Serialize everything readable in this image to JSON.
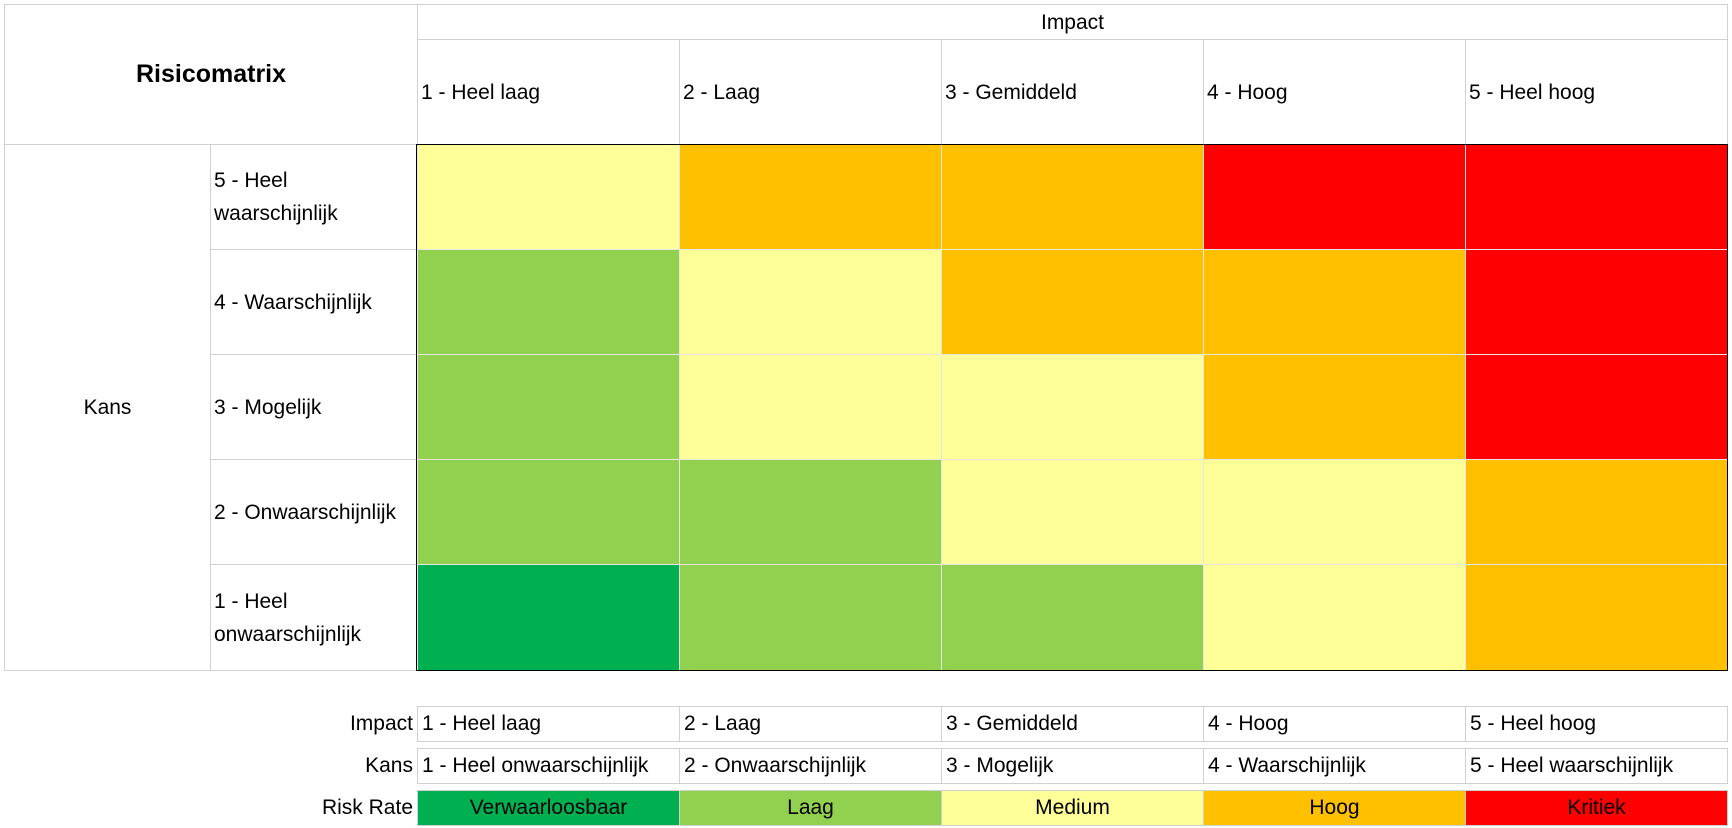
{
  "matrix": {
    "title": "Risicomatrix",
    "impact_header": "Impact",
    "kans_header": "Kans",
    "impact_levels": [
      "1 - Heel laag",
      "2 - Laag",
      "3 - Gemiddeld",
      "4 - Hoog",
      "5 - Heel hoog"
    ],
    "kans_levels": [
      "5 - Heel waarschijnlijk",
      "4 - Waarschijnlijk",
      "3 - Mogelijk",
      "2 - Onwaarschijnlijk",
      "1 - Heel onwaarschijnlijk"
    ],
    "cells": [
      [
        "medium",
        "hoog",
        "hoog",
        "kritiek",
        "kritiek"
      ],
      [
        "laag",
        "medium",
        "hoog",
        "hoog",
        "kritiek"
      ],
      [
        "laag",
        "medium",
        "medium",
        "hoog",
        "kritiek"
      ],
      [
        "laag",
        "laag",
        "medium",
        "medium",
        "hoog"
      ],
      [
        "verwaarloosbaar",
        "laag",
        "laag",
        "medium",
        "hoog"
      ]
    ]
  },
  "colors": {
    "verwaarloosbaar": "#00b050",
    "laag": "#92d050",
    "medium": "#ffff99",
    "hoog": "#ffc000",
    "kritiek": "#ff0000"
  },
  "legend": {
    "impact_label": "Impact",
    "kans_label": "Kans",
    "risk_label": "Risk Rate",
    "impact_values": [
      "1 - Heel laag",
      "2 - Laag",
      "3 - Gemiddeld",
      "4 - Hoog",
      "5 - Heel hoog"
    ],
    "kans_values": [
      "1 - Heel onwaarschijnlijk",
      "2 - Onwaarschijnlijk",
      "3 - Mogelijk",
      "4 - Waarschijnlijk",
      "5 - Heel waarschijnlijk"
    ],
    "risk_values": [
      "Verwaarloosbaar",
      "Laag",
      "Medium",
      "Hoog",
      "Kritiek"
    ],
    "risk_keys": [
      "verwaarloosbaar",
      "laag",
      "medium",
      "hoog",
      "kritiek"
    ]
  }
}
